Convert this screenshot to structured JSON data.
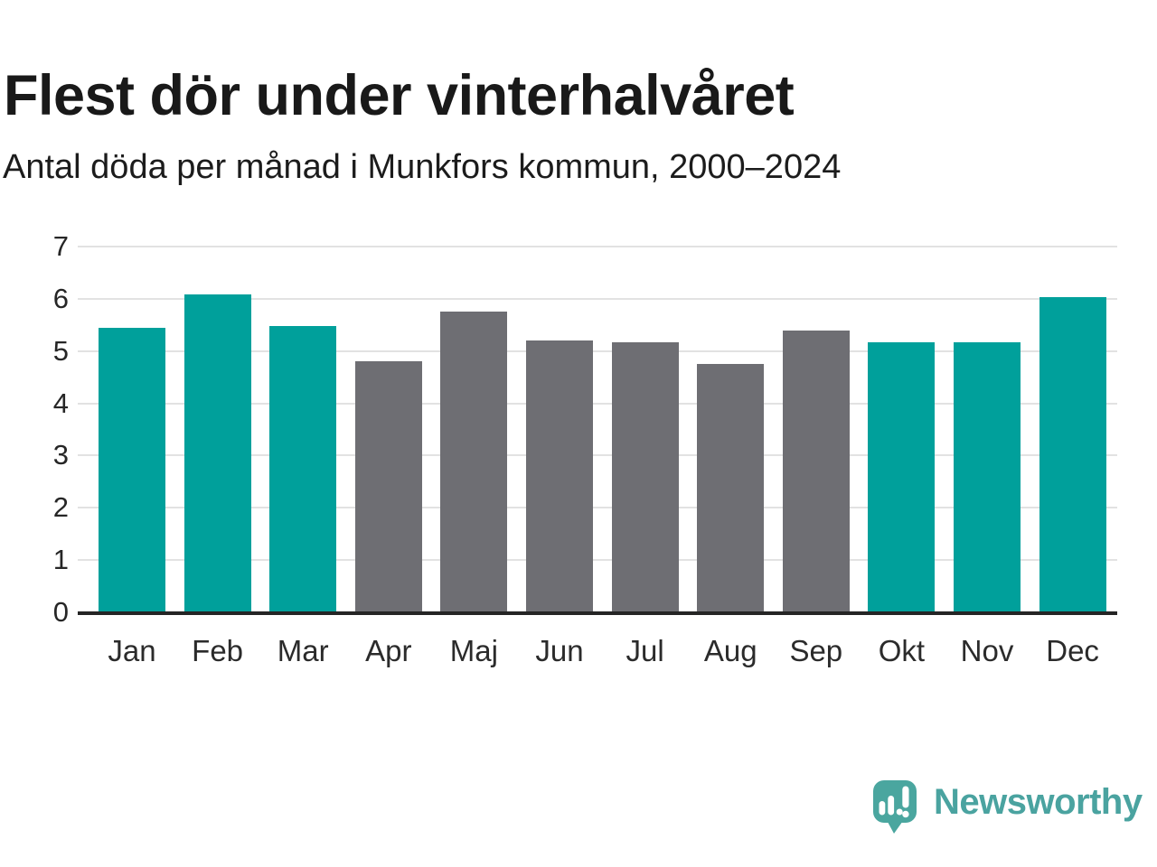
{
  "header": {
    "title": "Flest dör under vinterhalvåret",
    "subtitle": "Antal döda per månad i Munkfors kommun, 2000–2024"
  },
  "chart_data": {
    "type": "bar",
    "title": "Flest dör under vinterhalvåret",
    "subtitle": "Antal döda per månad i Munkfors kommun, 2000–2024",
    "categories": [
      "Jan",
      "Feb",
      "Mar",
      "Apr",
      "Maj",
      "Jun",
      "Jul",
      "Aug",
      "Sep",
      "Okt",
      "Nov",
      "Dec"
    ],
    "values": [
      5.44,
      6.08,
      5.48,
      4.8,
      5.76,
      5.2,
      5.16,
      4.76,
      5.4,
      5.16,
      5.16,
      6.04
    ],
    "point_color_roles": [
      "winter",
      "winter",
      "winter",
      "summer",
      "summer",
      "summer",
      "summer",
      "summer",
      "summer",
      "winter",
      "winter",
      "winter"
    ],
    "colors": {
      "winter": "#00a09b",
      "summer": "#6e6e73"
    },
    "xlabel": "",
    "ylabel": "",
    "ylim": [
      0,
      7
    ],
    "yticks": [
      0,
      1,
      2,
      3,
      4,
      5,
      6,
      7
    ],
    "grid": true,
    "legend": false,
    "gridline_color": "#e2e2e2",
    "axis_line_color": "#252525"
  },
  "branding": {
    "logo_icon": "newsworthy-speech-bubble-bar-chart-icon",
    "logo_text": "Newsworthy",
    "logo_color": "#4aa3a0"
  }
}
